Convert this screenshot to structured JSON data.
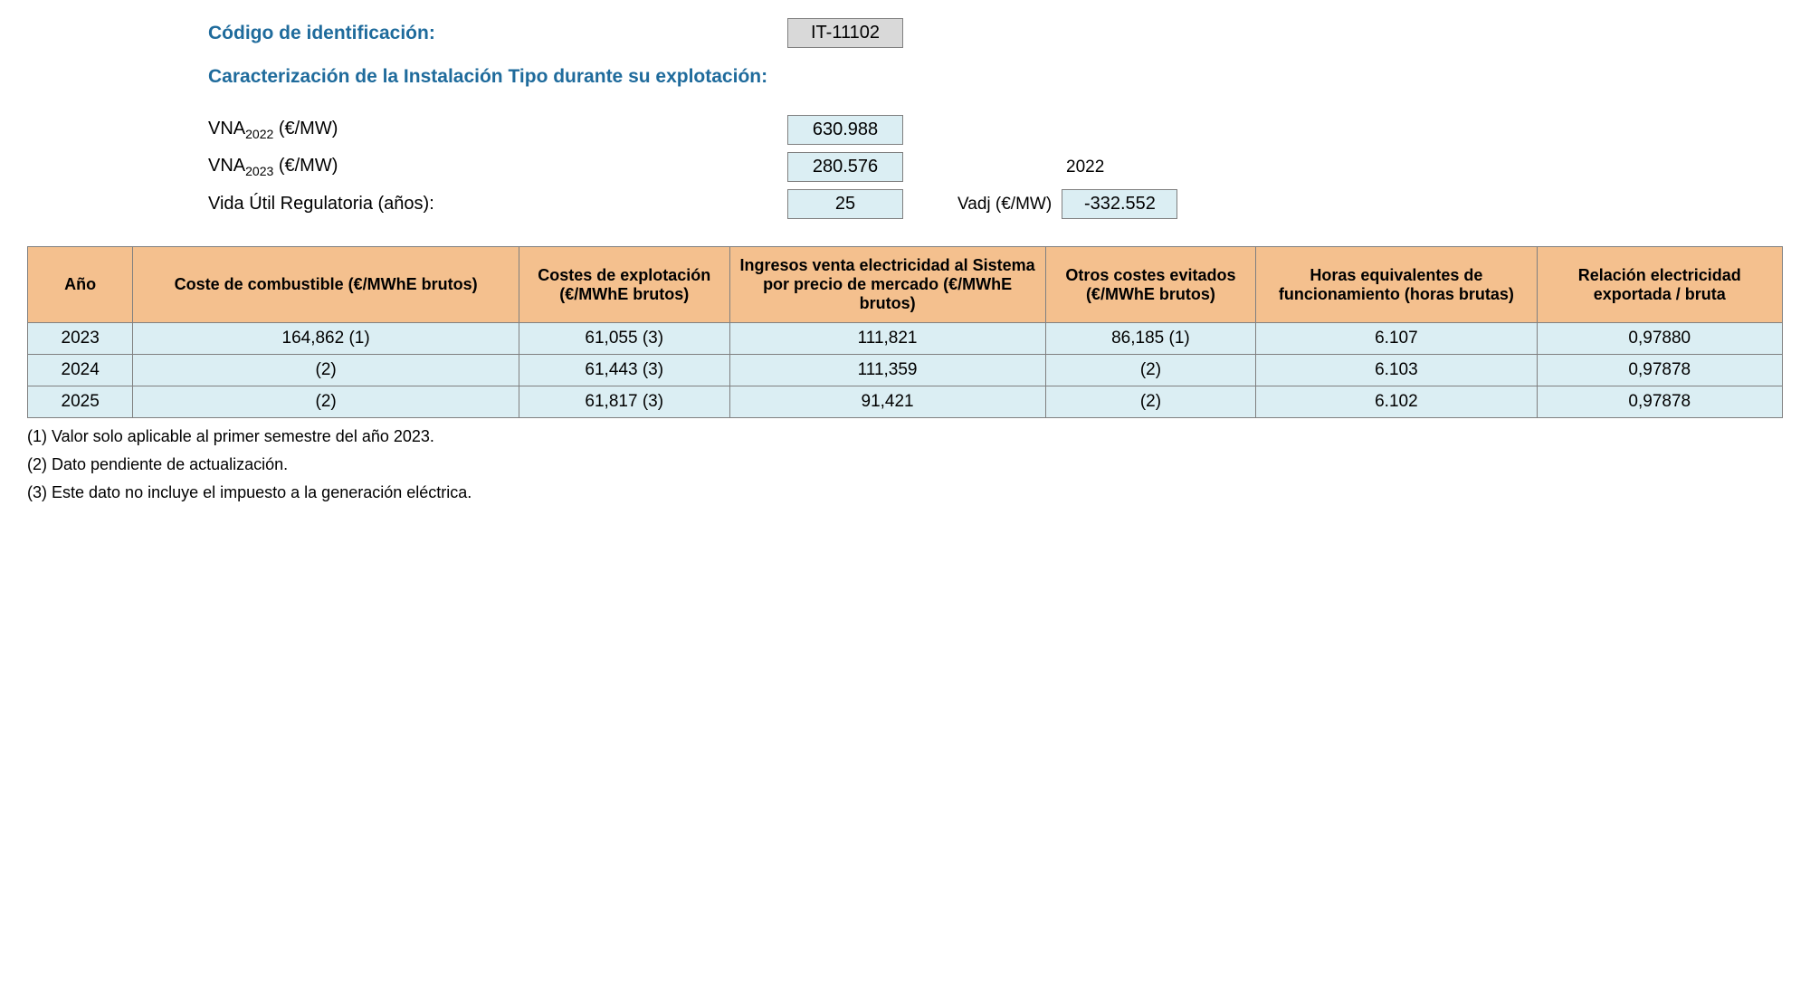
{
  "colors": {
    "heading": "#1f6b9c",
    "header_bg": "#f4c08e",
    "cell_bg": "#dbeef3",
    "box_gray": "#d9d9d9",
    "border": "#808080"
  },
  "header": {
    "code_label": "Código de identificación:",
    "code_value": "IT-11102",
    "subtitle": "Caracterización de la Instalación Tipo durante su explotación:",
    "vna2022_label_pre": "VNA",
    "vna2022_sub": "2022",
    "vna2022_label_post": " (€/MW)",
    "vna2022_value": "630.988",
    "vna2023_label_pre": "VNA",
    "vna2023_sub": "2023",
    "vna2023_label_post": " (€/MW)",
    "vna2023_value": "280.576",
    "year_extra": "2022",
    "vida_label": "Vida Útil Regulatoria (años):",
    "vida_value": "25",
    "vadj_label": "Vadj (€/MW)",
    "vadj_value": "-332.552"
  },
  "table": {
    "columns": [
      "Año",
      "Coste de combustible (€/MWhE brutos)",
      "Costes de explotación (€/MWhE brutos)",
      "Ingresos venta electricidad al Sistema por precio de mercado (€/MWhE brutos)",
      "Otros costes evitados (€/MWhE brutos)",
      "Horas equivalentes de funcionamiento (horas brutas)",
      "Relación electricidad exportada / bruta"
    ],
    "col_widths_pct": [
      6,
      22,
      12,
      18,
      12,
      16,
      14
    ],
    "rows": [
      [
        "2023",
        "164,862 (1)",
        "61,055 (3)",
        "111,821",
        "86,185 (1)",
        "6.107",
        "0,97880"
      ],
      [
        "2024",
        "(2)",
        "61,443 (3)",
        "111,359",
        "(2)",
        "6.103",
        "0,97878"
      ],
      [
        "2025",
        "(2)",
        "61,817 (3)",
        "91,421",
        "(2)",
        "6.102",
        "0,97878"
      ]
    ]
  },
  "footnotes": [
    "(1) Valor solo aplicable al primer semestre del año 2023.",
    "(2) Dato pendiente de actualización.",
    "(3) Este dato no incluye el impuesto a la generación eléctrica."
  ]
}
